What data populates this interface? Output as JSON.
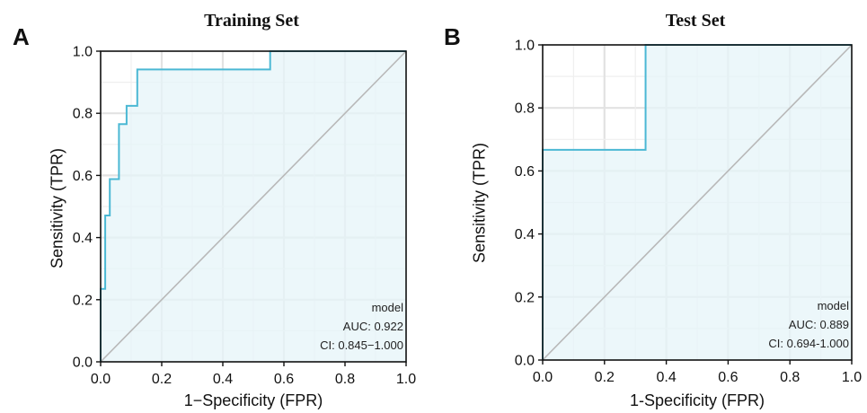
{
  "chart_data": [
    {
      "type": "line",
      "panel_label": "A",
      "title": "Training Set",
      "xlabel": "1−Specificity (FPR)",
      "ylabel": "Sensitivity (TPR)",
      "xlim": [
        0,
        1
      ],
      "ylim": [
        0,
        1
      ],
      "xticks": [
        "0.0",
        "0.2",
        "0.4",
        "0.6",
        "0.8",
        "1.0"
      ],
      "yticks": [
        "0.0",
        "0.2",
        "0.4",
        "0.6",
        "0.8",
        "1.0"
      ],
      "grid": true,
      "legend_placement": "bottom-right",
      "legend": {
        "title": "model",
        "auc": "AUC: 0.922",
        "ci": "CI: 0.845−1.000"
      },
      "curve_color": "#4bb8d4",
      "fill_color": "#e6f4f8",
      "diagonal_color": "#b8b8b8",
      "series": [
        {
          "x": [
            0.0,
            0.0,
            0.015,
            0.015,
            0.03,
            0.03,
            0.06,
            0.06,
            0.085,
            0.085,
            0.12,
            0.12,
            0.555,
            0.555,
            1.0
          ],
          "y": [
            0.0,
            0.235,
            0.235,
            0.471,
            0.471,
            0.588,
            0.588,
            0.765,
            0.765,
            0.824,
            0.824,
            0.941,
            0.941,
            1.0,
            1.0
          ]
        }
      ]
    },
    {
      "type": "line",
      "panel_label": "B",
      "title": "Test Set",
      "xlabel": "1-Specificity (FPR)",
      "ylabel": "Sensitivity (TPR)",
      "xlim": [
        0,
        1
      ],
      "ylim": [
        0,
        1
      ],
      "xticks": [
        "0.0",
        "0.2",
        "0.4",
        "0.6",
        "0.8",
        "1.0"
      ],
      "yticks": [
        "0.0",
        "0.2",
        "0.4",
        "0.6",
        "0.8",
        "1.0"
      ],
      "grid": true,
      "legend_placement": "bottom-right",
      "legend": {
        "title": "model",
        "auc": "AUC: 0.889",
        "ci": "CI: 0.694-1.000"
      },
      "curve_color": "#4bb8d4",
      "fill_color": "#e6f4f8",
      "diagonal_color": "#b8b8b8",
      "series": [
        {
          "x": [
            0.0,
            0.0,
            0.333,
            0.333,
            1.0
          ],
          "y": [
            0.0,
            0.667,
            0.667,
            1.0,
            1.0
          ]
        }
      ]
    }
  ]
}
